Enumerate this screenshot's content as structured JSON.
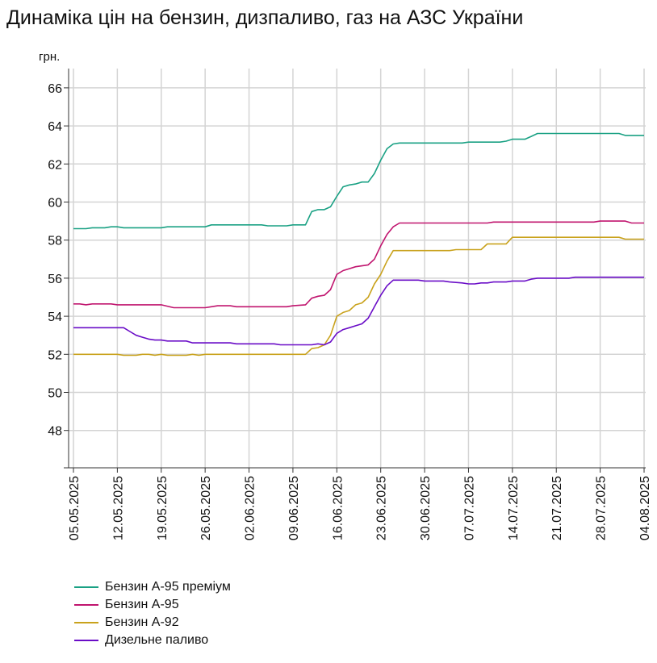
{
  "chart_data": {
    "type": "line",
    "title": "Динаміка цін на бензин, дизпаливо, газ на АЗС України",
    "ylabel": "грн.",
    "xlabel": "",
    "ylim": [
      46.5,
      67.5
    ],
    "yticks": [
      48,
      50,
      52,
      54,
      56,
      58,
      60,
      62,
      64,
      66
    ],
    "xlim": [
      "2025-05-05",
      "2025-08-04"
    ],
    "xticks": [
      "05.05.2025",
      "12.05.2025",
      "19.05.2025",
      "26.05.2025",
      "02.06.2025",
      "09.06.2025",
      "16.06.2025",
      "23.06.2025",
      "30.06.2025",
      "07.07.2025",
      "14.07.2025",
      "21.07.2025",
      "28.07.2025",
      "04.08.2025"
    ],
    "grid": true,
    "legend": "bottom-left",
    "series": [
      {
        "name": "Бензин А-95 преміум",
        "color": "#1aa184",
        "points": [
          [
            "2025-05-05",
            58.6
          ],
          [
            "2025-05-07",
            58.6
          ],
          [
            "2025-05-08",
            58.65
          ],
          [
            "2025-05-10",
            58.65
          ],
          [
            "2025-05-11",
            58.7
          ],
          [
            "2025-05-12",
            58.7
          ],
          [
            "2025-05-13",
            58.65
          ],
          [
            "2025-05-19",
            58.65
          ],
          [
            "2025-05-20",
            58.7
          ],
          [
            "2025-05-26",
            58.7
          ],
          [
            "2025-05-27",
            58.8
          ],
          [
            "2025-06-04",
            58.8
          ],
          [
            "2025-06-05",
            58.75
          ],
          [
            "2025-06-08",
            58.75
          ],
          [
            "2025-06-09",
            58.8
          ],
          [
            "2025-06-11",
            58.8
          ],
          [
            "2025-06-12",
            59.5
          ],
          [
            "2025-06-13",
            59.6
          ],
          [
            "2025-06-14",
            59.6
          ],
          [
            "2025-06-15",
            59.75
          ],
          [
            "2025-06-16",
            60.3
          ],
          [
            "2025-06-17",
            60.8
          ],
          [
            "2025-06-18",
            60.9
          ],
          [
            "2025-06-19",
            60.95
          ],
          [
            "2025-06-20",
            61.05
          ],
          [
            "2025-06-21",
            61.05
          ],
          [
            "2025-06-22",
            61.5
          ],
          [
            "2025-06-23",
            62.2
          ],
          [
            "2025-06-24",
            62.8
          ],
          [
            "2025-06-25",
            63.05
          ],
          [
            "2025-06-26",
            63.1
          ],
          [
            "2025-07-06",
            63.1
          ],
          [
            "2025-07-07",
            63.15
          ],
          [
            "2025-07-12",
            63.15
          ],
          [
            "2025-07-13",
            63.2
          ],
          [
            "2025-07-14",
            63.3
          ],
          [
            "2025-07-16",
            63.3
          ],
          [
            "2025-07-17",
            63.45
          ],
          [
            "2025-07-18",
            63.6
          ],
          [
            "2025-07-31",
            63.6
          ],
          [
            "2025-08-01",
            63.5
          ],
          [
            "2025-08-04",
            63.5
          ]
        ]
      },
      {
        "name": "Бензин А-95",
        "color": "#c0146e",
        "points": [
          [
            "2025-05-05",
            54.65
          ],
          [
            "2025-05-06",
            54.65
          ],
          [
            "2025-05-07",
            54.6
          ],
          [
            "2025-05-08",
            54.65
          ],
          [
            "2025-05-11",
            54.65
          ],
          [
            "2025-05-12",
            54.6
          ],
          [
            "2025-05-19",
            54.6
          ],
          [
            "2025-05-21",
            54.45
          ],
          [
            "2025-05-26",
            54.45
          ],
          [
            "2025-05-28",
            54.55
          ],
          [
            "2025-05-30",
            54.55
          ],
          [
            "2025-05-31",
            54.5
          ],
          [
            "2025-06-08",
            54.5
          ],
          [
            "2025-06-09",
            54.55
          ],
          [
            "2025-06-11",
            54.6
          ],
          [
            "2025-06-12",
            54.95
          ],
          [
            "2025-06-13",
            55.05
          ],
          [
            "2025-06-14",
            55.1
          ],
          [
            "2025-06-15",
            55.4
          ],
          [
            "2025-06-16",
            56.2
          ],
          [
            "2025-06-17",
            56.4
          ],
          [
            "2025-06-18",
            56.5
          ],
          [
            "2025-06-19",
            56.6
          ],
          [
            "2025-06-20",
            56.65
          ],
          [
            "2025-06-21",
            56.7
          ],
          [
            "2025-06-22",
            57.0
          ],
          [
            "2025-06-23",
            57.7
          ],
          [
            "2025-06-24",
            58.3
          ],
          [
            "2025-06-25",
            58.7
          ],
          [
            "2025-06-26",
            58.9
          ],
          [
            "2025-07-10",
            58.9
          ],
          [
            "2025-07-11",
            58.95
          ],
          [
            "2025-07-27",
            58.95
          ],
          [
            "2025-07-28",
            59.0
          ],
          [
            "2025-08-01",
            59.0
          ],
          [
            "2025-08-02",
            58.9
          ],
          [
            "2025-08-04",
            58.9
          ]
        ]
      },
      {
        "name": "Бензин А-92",
        "color": "#c9a21c",
        "points": [
          [
            "2025-05-05",
            52.0
          ],
          [
            "2025-05-12",
            52.0
          ],
          [
            "2025-05-13",
            51.95
          ],
          [
            "2025-05-15",
            51.95
          ],
          [
            "2025-05-16",
            52.0
          ],
          [
            "2025-05-17",
            52.0
          ],
          [
            "2025-05-18",
            51.95
          ],
          [
            "2025-05-19",
            52.0
          ],
          [
            "2025-05-20",
            51.95
          ],
          [
            "2025-05-23",
            51.95
          ],
          [
            "2025-05-24",
            52.0
          ],
          [
            "2025-05-25",
            51.95
          ],
          [
            "2025-05-26",
            52.0
          ],
          [
            "2025-06-11",
            52.0
          ],
          [
            "2025-06-12",
            52.3
          ],
          [
            "2025-06-13",
            52.35
          ],
          [
            "2025-06-14",
            52.5
          ],
          [
            "2025-06-15",
            53.0
          ],
          [
            "2025-06-16",
            54.0
          ],
          [
            "2025-06-17",
            54.2
          ],
          [
            "2025-06-18",
            54.3
          ],
          [
            "2025-06-19",
            54.6
          ],
          [
            "2025-06-20",
            54.7
          ],
          [
            "2025-06-21",
            55.0
          ],
          [
            "2025-06-22",
            55.7
          ],
          [
            "2025-06-23",
            56.2
          ],
          [
            "2025-06-24",
            56.9
          ],
          [
            "2025-06-25",
            57.45
          ],
          [
            "2025-07-04",
            57.45
          ],
          [
            "2025-07-05",
            57.5
          ],
          [
            "2025-07-09",
            57.5
          ],
          [
            "2025-07-10",
            57.8
          ],
          [
            "2025-07-13",
            57.8
          ],
          [
            "2025-07-14",
            58.15
          ],
          [
            "2025-07-31",
            58.15
          ],
          [
            "2025-08-01",
            58.05
          ],
          [
            "2025-08-04",
            58.05
          ]
        ]
      },
      {
        "name": "Дизельне паливо",
        "color": "#6a0dc7",
        "points": [
          [
            "2025-05-05",
            53.4
          ],
          [
            "2025-05-13",
            53.4
          ],
          [
            "2025-05-14",
            53.2
          ],
          [
            "2025-05-15",
            53.0
          ],
          [
            "2025-05-16",
            52.9
          ],
          [
            "2025-05-17",
            52.8
          ],
          [
            "2025-05-18",
            52.75
          ],
          [
            "2025-05-19",
            52.75
          ],
          [
            "2025-05-20",
            52.7
          ],
          [
            "2025-05-23",
            52.7
          ],
          [
            "2025-05-24",
            52.6
          ],
          [
            "2025-05-30",
            52.6
          ],
          [
            "2025-05-31",
            52.55
          ],
          [
            "2025-06-06",
            52.55
          ],
          [
            "2025-06-07",
            52.5
          ],
          [
            "2025-06-12",
            52.5
          ],
          [
            "2025-06-13",
            52.55
          ],
          [
            "2025-06-14",
            52.5
          ],
          [
            "2025-06-15",
            52.65
          ],
          [
            "2025-06-16",
            53.1
          ],
          [
            "2025-06-17",
            53.3
          ],
          [
            "2025-06-18",
            53.4
          ],
          [
            "2025-06-19",
            53.5
          ],
          [
            "2025-06-20",
            53.6
          ],
          [
            "2025-06-21",
            53.9
          ],
          [
            "2025-06-22",
            54.5
          ],
          [
            "2025-06-23",
            55.1
          ],
          [
            "2025-06-24",
            55.6
          ],
          [
            "2025-06-25",
            55.9
          ],
          [
            "2025-06-29",
            55.9
          ],
          [
            "2025-06-30",
            55.85
          ],
          [
            "2025-07-03",
            55.85
          ],
          [
            "2025-07-04",
            55.8
          ],
          [
            "2025-07-06",
            55.75
          ],
          [
            "2025-07-07",
            55.7
          ],
          [
            "2025-07-08",
            55.7
          ],
          [
            "2025-07-09",
            55.75
          ],
          [
            "2025-07-10",
            55.75
          ],
          [
            "2025-07-11",
            55.8
          ],
          [
            "2025-07-13",
            55.8
          ],
          [
            "2025-07-14",
            55.85
          ],
          [
            "2025-07-16",
            55.85
          ],
          [
            "2025-07-17",
            55.95
          ],
          [
            "2025-07-18",
            56.0
          ],
          [
            "2025-07-23",
            56.0
          ],
          [
            "2025-07-24",
            56.05
          ],
          [
            "2025-08-04",
            56.05
          ]
        ]
      }
    ]
  }
}
